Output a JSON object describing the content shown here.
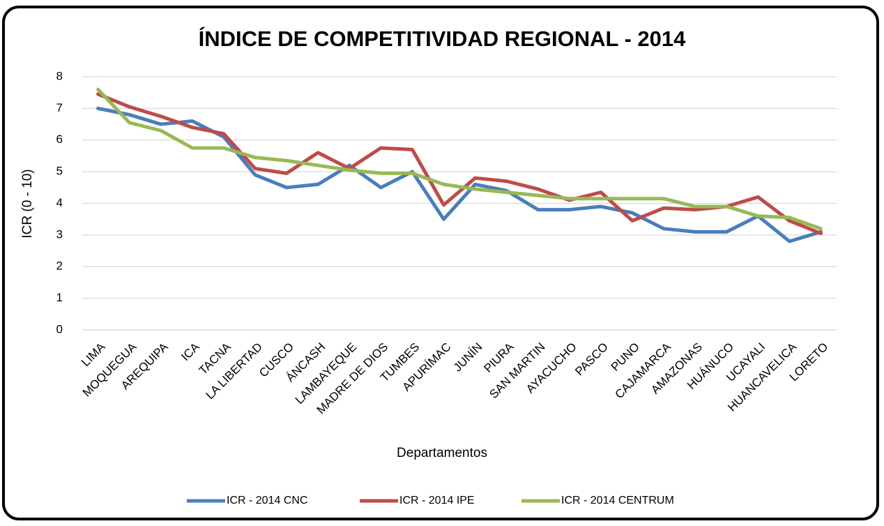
{
  "chart_data": {
    "type": "line",
    "title": "ÍNDICE DE COMPETITIVIDAD REGIONAL - 2014",
    "x_label": "Departamentos",
    "y_label": "ICR (0 - 10)",
    "categories": [
      "LIMA",
      "MOQUEGUA",
      "AREQUIPA",
      "ICA",
      "TACNA",
      "LA LIBERTAD",
      "CUSCO",
      "ÁNCASH",
      "LAMBAYEQUE",
      "MADRE DE DIOS",
      "TUMBES",
      "APURÍMAC",
      "JUNÍN",
      "PIURA",
      "SAN MARTIN",
      "AYACUCHO",
      "PASCO",
      "PUNO",
      "CAJAMARCA",
      "AMAZONAS",
      "HUÁNUCO",
      "UCAYALI",
      "HUANCAVELICA",
      "LORETO"
    ],
    "series": [
      {
        "name": "ICR - 2014 CNC",
        "color": "#4a7ebb",
        "values": [
          7.0,
          6.8,
          6.5,
          6.6,
          6.1,
          4.9,
          4.5,
          4.6,
          5.2,
          4.5,
          5.0,
          3.5,
          4.6,
          4.4,
          3.8,
          3.8,
          3.9,
          3.7,
          3.2,
          3.1,
          3.1,
          3.6,
          2.8,
          3.1
        ]
      },
      {
        "name": "ICR - 2014 IPE",
        "color": "#be4b48",
        "values": [
          7.45,
          7.05,
          6.75,
          6.4,
          6.2,
          5.1,
          4.95,
          5.6,
          5.1,
          5.75,
          5.7,
          3.95,
          4.8,
          4.7,
          4.45,
          4.1,
          4.35,
          3.45,
          3.85,
          3.8,
          3.9,
          4.2,
          3.45,
          3.05
        ]
      },
      {
        "name": "ICR - 2014 CENTRUM",
        "color": "#98b954",
        "values": [
          7.6,
          6.55,
          6.3,
          5.75,
          5.75,
          5.45,
          5.35,
          5.2,
          5.05,
          4.95,
          4.95,
          4.6,
          4.45,
          4.35,
          4.25,
          4.15,
          4.15,
          4.15,
          4.15,
          3.9,
          3.9,
          3.6,
          3.55,
          3.2
        ]
      }
    ],
    "ylim": [
      0,
      8
    ],
    "yticks": [
      0,
      1,
      2,
      3,
      4,
      5,
      6,
      7,
      8
    ],
    "grid": true,
    "legend": "bottom"
  }
}
